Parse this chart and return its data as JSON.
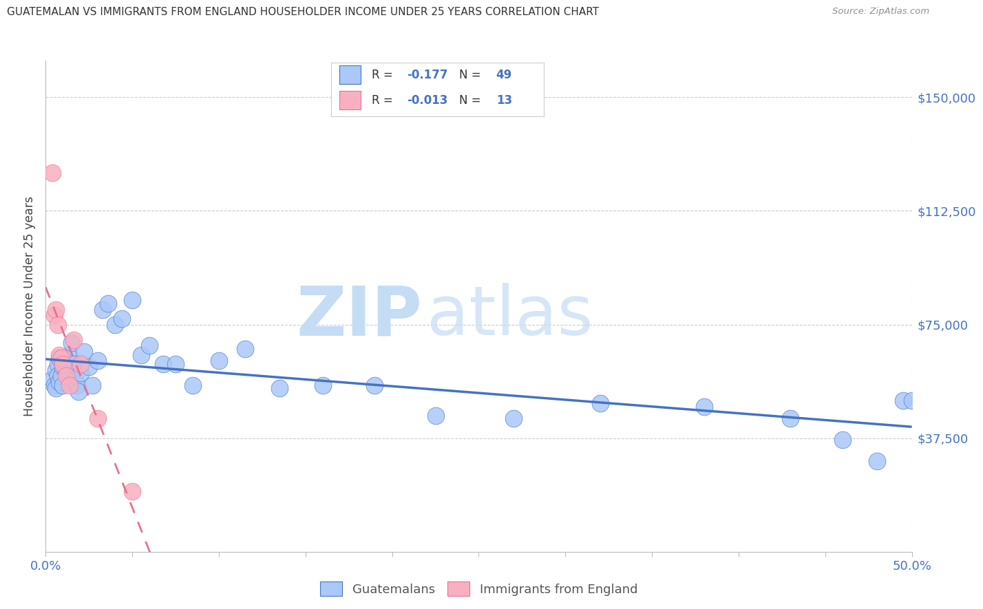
{
  "title": "GUATEMALAN VS IMMIGRANTS FROM ENGLAND HOUSEHOLDER INCOME UNDER 25 YEARS CORRELATION CHART",
  "source": "Source: ZipAtlas.com",
  "ylabel": "Householder Income Under 25 years",
  "xlim": [
    0.0,
    0.5
  ],
  "ylim": [
    0,
    162000
  ],
  "watermark_zip": "ZIP",
  "watermark_atlas": "atlas",
  "blue_R": "-0.177",
  "blue_N": "49",
  "pink_R": "-0.013",
  "pink_N": "13",
  "blue_scatter_x": [
    0.004,
    0.005,
    0.006,
    0.006,
    0.007,
    0.007,
    0.008,
    0.008,
    0.009,
    0.01,
    0.01,
    0.011,
    0.012,
    0.013,
    0.014,
    0.015,
    0.016,
    0.017,
    0.018,
    0.019,
    0.02,
    0.022,
    0.025,
    0.027,
    0.03,
    0.033,
    0.036,
    0.04,
    0.044,
    0.05,
    0.055,
    0.06,
    0.068,
    0.075,
    0.085,
    0.1,
    0.115,
    0.135,
    0.16,
    0.19,
    0.225,
    0.27,
    0.32,
    0.38,
    0.43,
    0.46,
    0.48,
    0.495,
    0.5
  ],
  "blue_scatter_y": [
    57000,
    55000,
    60000,
    54000,
    62000,
    58000,
    64000,
    56000,
    58000,
    61000,
    55000,
    63000,
    60000,
    58000,
    65000,
    69000,
    62000,
    57000,
    55000,
    53000,
    59000,
    66000,
    61000,
    55000,
    63000,
    80000,
    82000,
    75000,
    77000,
    83000,
    65000,
    68000,
    62000,
    62000,
    55000,
    63000,
    67000,
    54000,
    55000,
    55000,
    45000,
    44000,
    49000,
    48000,
    44000,
    37000,
    30000,
    50000,
    50000
  ],
  "pink_scatter_x": [
    0.004,
    0.005,
    0.006,
    0.007,
    0.008,
    0.009,
    0.01,
    0.012,
    0.014,
    0.016,
    0.02,
    0.03,
    0.05
  ],
  "pink_scatter_y": [
    125000,
    78000,
    80000,
    75000,
    65000,
    64000,
    62000,
    58000,
    55000,
    70000,
    62000,
    44000,
    20000
  ],
  "blue_color": "#aac8f8",
  "pink_color": "#f8b0c0",
  "blue_line_color": "#4472c4",
  "pink_line_color": "#e87090",
  "title_color": "#333333",
  "axis_color": "#4472c4",
  "source_color": "#909090",
  "grid_color": "#cccccc",
  "spine_color": "#bbbbbb",
  "watermark_color": "#c5dcf5",
  "legend_text_color": "#333333",
  "bottom_legend_text_color": "#555555",
  "ytick_vals": [
    37500,
    75000,
    112500,
    150000
  ],
  "ytick_labels": [
    "$37,500",
    "$75,000",
    "$112,500",
    "$150,000"
  ],
  "xtick_vals": [
    0.0,
    0.05,
    0.1,
    0.15,
    0.2,
    0.25,
    0.3,
    0.35,
    0.4,
    0.45,
    0.5
  ]
}
